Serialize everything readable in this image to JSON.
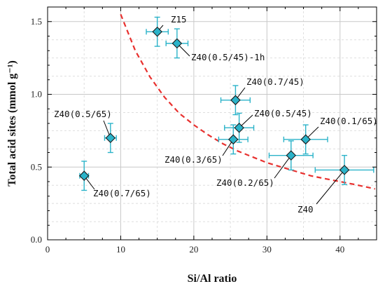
{
  "chart_data": {
    "type": "scatter",
    "xlabel": "Si/Al ratio",
    "ylabel": "Total acid sites (mmol g⁻¹)",
    "xlim": [
      0,
      45
    ],
    "ylim": [
      0,
      1.6
    ],
    "xticks": [
      0,
      10,
      20,
      30,
      40
    ],
    "xtick_labels": [
      "0",
      "10",
      "20",
      "30",
      "40"
    ],
    "yticks": [
      0.0,
      0.5,
      1.0,
      1.5
    ],
    "ytick_labels": [
      "0.0",
      "0.5",
      "1.0",
      "1.5"
    ],
    "grid": true,
    "marker_color": "#2bb3c9",
    "fit_color": "#e8312f",
    "points": [
      {
        "label": "Z15",
        "x": 15.0,
        "y": 1.43,
        "xerr": 1.5,
        "yerr": 0.1
      },
      {
        "label": "Z40(0.5/45)-1h",
        "x": 17.7,
        "y": 1.35,
        "xerr": 1.5,
        "yerr": 0.1
      },
      {
        "label": "Z40(0.7/45)",
        "x": 25.7,
        "y": 0.96,
        "xerr": 2.0,
        "yerr": 0.1
      },
      {
        "label": "Z40(0.5/45)",
        "x": 26.2,
        "y": 0.77,
        "xerr": 2.0,
        "yerr": 0.1
      },
      {
        "label": "Z40(0.3/65)",
        "x": 25.4,
        "y": 0.69,
        "xerr": 2.0,
        "yerr": 0.1
      },
      {
        "label": "Z40(0.1/65)",
        "x": 35.3,
        "y": 0.69,
        "xerr": 3.0,
        "yerr": 0.1
      },
      {
        "label": "Z40(0.2/65)",
        "x": 33.3,
        "y": 0.58,
        "xerr": 3.0,
        "yerr": 0.1
      },
      {
        "label": "Z40",
        "x": 40.6,
        "y": 0.48,
        "xerr": 4.0,
        "yerr": 0.1
      },
      {
        "label": "Z40(0.5/65)",
        "x": 8.6,
        "y": 0.7,
        "xerr": 0.8,
        "yerr": 0.1
      },
      {
        "label": "Z40(0.7/65)",
        "x": 5.0,
        "y": 0.44,
        "xerr": 0.6,
        "yerr": 0.1
      }
    ],
    "fit_curve": {
      "style": "dashed",
      "x": [
        10,
        12,
        14,
        16,
        18,
        20,
        22,
        24,
        26,
        28,
        30,
        32,
        34,
        36,
        38,
        40,
        42,
        44.8
      ],
      "y": [
        1.55,
        1.3,
        1.12,
        0.98,
        0.87,
        0.79,
        0.72,
        0.66,
        0.61,
        0.57,
        0.53,
        0.5,
        0.47,
        0.44,
        0.42,
        0.4,
        0.38,
        0.35
      ]
    }
  }
}
